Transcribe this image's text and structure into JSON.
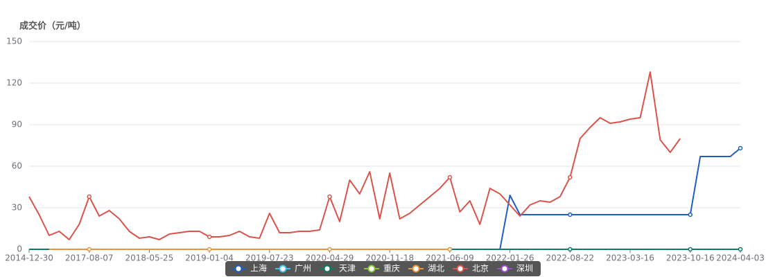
{
  "chart_data": {
    "type": "line",
    "y_axis_title": "成交价（元/吨）",
    "categories": [
      "2014-12-30",
      null,
      null,
      null,
      null,
      null,
      "2017-08-07",
      null,
      null,
      null,
      null,
      null,
      "2018-05-25",
      null,
      null,
      null,
      null,
      null,
      "2019-01-04",
      null,
      null,
      null,
      null,
      null,
      "2019-07-23",
      null,
      null,
      null,
      null,
      null,
      "2020-04-29",
      null,
      null,
      null,
      null,
      null,
      "2020-11-18",
      null,
      null,
      null,
      null,
      null,
      "2021-06-09",
      null,
      null,
      null,
      null,
      null,
      "2022-01-26",
      null,
      null,
      null,
      null,
      null,
      "2022-08-22",
      null,
      null,
      null,
      null,
      null,
      "2023-03-16",
      null,
      null,
      null,
      null,
      null,
      "2023-10-16",
      null,
      null,
      null,
      null,
      "2024-04-03"
    ],
    "ylim": [
      0,
      150
    ],
    "yticks": [
      0,
      30,
      60,
      90,
      120,
      150
    ],
    "grid": true,
    "series": [
      {
        "name": "上海",
        "color": "#1e5ec1",
        "values": [
          null,
          null,
          null,
          null,
          null,
          null,
          null,
          null,
          null,
          null,
          null,
          null,
          null,
          null,
          null,
          null,
          null,
          null,
          null,
          null,
          null,
          null,
          null,
          null,
          null,
          null,
          null,
          null,
          null,
          null,
          null,
          null,
          null,
          null,
          null,
          null,
          null,
          null,
          null,
          null,
          null,
          null,
          null,
          null,
          null,
          null,
          null,
          0,
          39,
          25,
          25,
          25,
          25,
          25,
          25,
          25,
          25,
          25,
          25,
          25,
          25,
          25,
          25,
          25,
          25,
          25,
          25,
          67,
          67,
          67,
          67,
          73
        ]
      },
      {
        "name": "广州",
        "color": "#3ec5e8",
        "values": [
          null,
          null,
          null,
          null,
          null,
          null,
          null,
          null,
          null,
          null,
          null,
          null,
          null,
          null,
          null,
          null,
          null,
          null,
          null,
          null,
          null,
          null,
          null,
          null,
          null,
          null,
          null,
          null,
          null,
          null,
          null,
          null,
          null,
          null,
          null,
          null,
          null,
          null,
          null,
          null,
          null,
          null,
          null,
          null,
          null,
          null,
          null,
          null,
          null,
          null,
          null,
          null,
          null,
          null,
          null,
          null,
          null,
          null,
          null,
          null,
          null,
          null,
          null,
          null,
          null,
          null,
          null,
          null,
          null,
          null,
          null,
          null
        ]
      },
      {
        "name": "天津",
        "color": "#0a7a66",
        "values": [
          0,
          0,
          0,
          null,
          null,
          null,
          null,
          null,
          null,
          null,
          null,
          null,
          null,
          null,
          null,
          null,
          null,
          null,
          null,
          null,
          null,
          null,
          null,
          null,
          null,
          null,
          null,
          null,
          null,
          null,
          null,
          null,
          null,
          null,
          null,
          null,
          null,
          null,
          null,
          null,
          null,
          null,
          0,
          0,
          0,
          0,
          0,
          0,
          0,
          0,
          0,
          0,
          0,
          0,
          0,
          0,
          0,
          0,
          0,
          0,
          0,
          0,
          0,
          0,
          0,
          0,
          0,
          0,
          0,
          0,
          0,
          0
        ]
      },
      {
        "name": "重庆",
        "color": "#8cc63e",
        "values": [
          null,
          null,
          null,
          null,
          null,
          null,
          null,
          null,
          null,
          null,
          null,
          null,
          null,
          null,
          null,
          null,
          null,
          null,
          null,
          null,
          null,
          null,
          null,
          null,
          null,
          null,
          null,
          null,
          null,
          null,
          null,
          null,
          null,
          null,
          null,
          null,
          null,
          null,
          null,
          null,
          null,
          null,
          null,
          null,
          null,
          null,
          null,
          null,
          null,
          null,
          null,
          null,
          null,
          null,
          null,
          null,
          null,
          null,
          null,
          null,
          null,
          null,
          null,
          null,
          null,
          null,
          null,
          null,
          null,
          null,
          null,
          null
        ]
      },
      {
        "name": "湖北",
        "color": "#ea9440",
        "values": [
          null,
          null,
          0,
          0,
          0,
          0,
          0,
          0,
          0,
          0,
          0,
          0,
          0,
          0,
          0,
          0,
          0,
          0,
          0,
          0,
          0,
          0,
          0,
          0,
          0,
          0,
          0,
          0,
          0,
          0,
          0,
          0,
          0,
          0,
          0,
          0,
          0,
          0,
          0,
          0,
          0,
          0,
          0,
          null,
          null,
          null,
          null,
          null,
          null,
          null,
          null,
          null,
          null,
          null,
          null,
          null,
          null,
          null,
          null,
          null,
          null,
          null,
          null,
          null,
          null,
          null,
          null,
          null,
          null,
          null,
          null,
          null
        ]
      },
      {
        "name": "北京",
        "color": "#d9534a",
        "values": [
          38,
          25,
          10,
          13,
          7,
          18,
          38,
          24,
          28,
          22,
          13,
          8,
          9,
          7,
          11,
          12,
          13,
          13,
          9,
          9,
          10,
          13,
          9,
          8,
          26,
          12,
          12,
          13,
          13,
          14,
          38,
          20,
          50,
          40,
          56,
          22,
          55,
          22,
          26,
          32,
          38,
          44,
          52,
          27,
          35,
          18,
          44,
          40,
          32,
          24,
          32,
          35,
          34,
          38,
          52,
          80,
          88,
          95,
          91,
          92,
          94,
          95,
          128,
          79,
          70,
          80,
          null,
          null,
          null,
          null,
          null,
          null
        ]
      },
      {
        "name": "深圳",
        "color": "#9a4fcb",
        "values": [
          null,
          null,
          null,
          null,
          null,
          null,
          null,
          null,
          null,
          null,
          null,
          null,
          null,
          null,
          null,
          null,
          null,
          null,
          null,
          null,
          null,
          null,
          null,
          null,
          null,
          null,
          null,
          null,
          null,
          null,
          null,
          null,
          null,
          null,
          null,
          null,
          null,
          null,
          null,
          null,
          null,
          null,
          null,
          null,
          null,
          null,
          null,
          null,
          null,
          null,
          null,
          null,
          null,
          null,
          null,
          null,
          null,
          null,
          null,
          null,
          null,
          null,
          null,
          null,
          null,
          null,
          null,
          null,
          null,
          null,
          null,
          null
        ]
      }
    ]
  }
}
